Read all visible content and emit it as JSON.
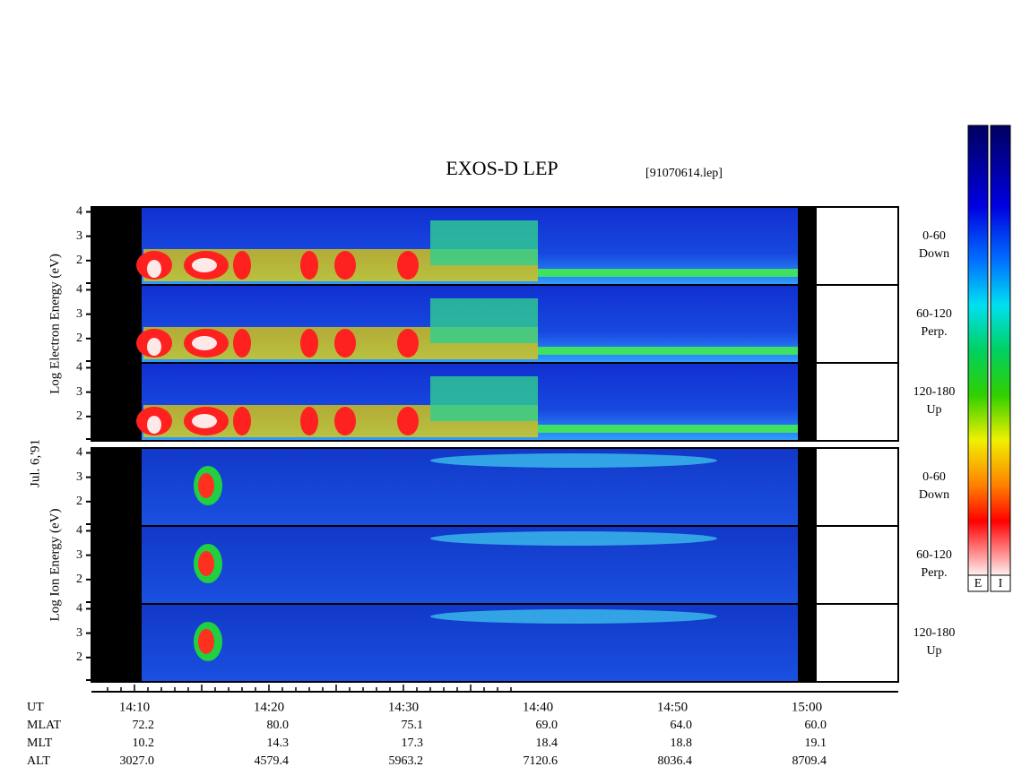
{
  "header": {
    "title": "EXOS-D LEP",
    "file": "[91070614.lep]",
    "date": "Jul. 6,'91"
  },
  "groups": [
    {
      "axis_title": "Log Electron Energy (eV)",
      "panels": [
        {
          "range": "0-60",
          "direction": "Down"
        },
        {
          "range": "60-120",
          "direction": "Perp."
        },
        {
          "range": "120-180",
          "direction": "Up"
        }
      ]
    },
    {
      "axis_title": "Log Ion Energy (eV)",
      "panels": [
        {
          "range": "0-60",
          "direction": "Down"
        },
        {
          "range": "60-120",
          "direction": "Perp."
        },
        {
          "range": "120-180",
          "direction": "Up"
        }
      ]
    }
  ],
  "yticks": [
    2,
    3,
    4
  ],
  "ylim": [
    1,
    4.2
  ],
  "time_axis": {
    "labels": [
      "14:10",
      "14:20",
      "14:30",
      "14:40",
      "14:50",
      "15:00"
    ]
  },
  "ephemeris": [
    {
      "name": "UT",
      "values": []
    },
    {
      "name": "MLAT",
      "values": [
        "72.2",
        "80.0",
        "75.1",
        "69.0",
        "64.0",
        "60.0"
      ]
    },
    {
      "name": "MLT",
      "values": [
        "10.2",
        "14.3",
        "17.3",
        "18.4",
        "18.8",
        "19.1"
      ]
    },
    {
      "name": "ALT",
      "values": [
        "3027.0",
        "4579.4",
        "5963.2",
        "7120.6",
        "8036.4",
        "8709.4"
      ]
    }
  ],
  "colorbars": [
    "E",
    "I"
  ]
}
